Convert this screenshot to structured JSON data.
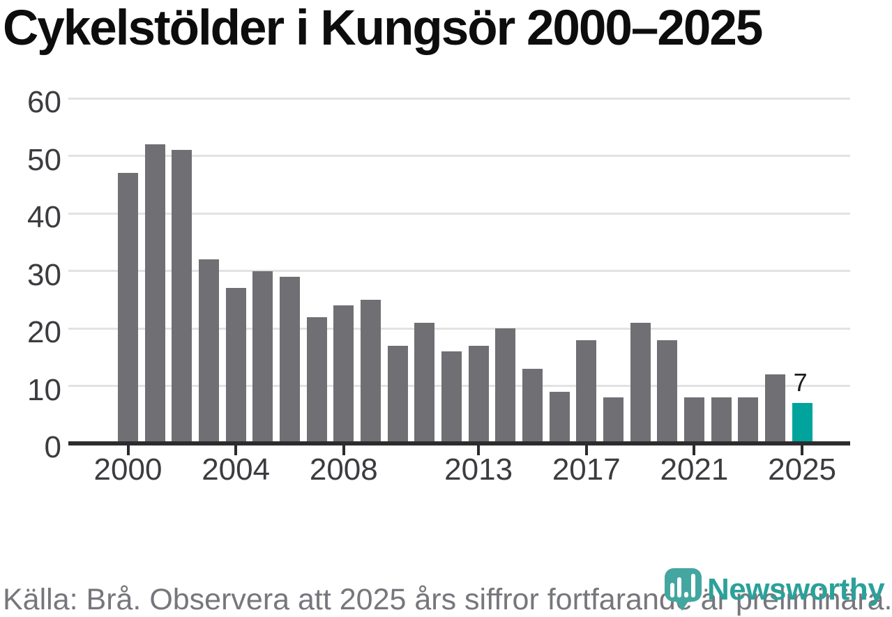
{
  "title": "Cykelstölder i Kungsör 2000–2025",
  "footer": {
    "source_note": "Källa: Brå. Observera att 2025 års siffror fortfarande är preliminära."
  },
  "branding": {
    "logo_text": "Newsworthy",
    "logo_icon": "newsworthy-pin-bar-chart-icon",
    "wordmark_color": "#2ba19a",
    "icon_color": "#43a6a0"
  },
  "colors": {
    "bar_default": "#6f6f74",
    "bar_highlight": "#00a49d",
    "gridline": "#e2e2e4",
    "axis_line": "#2c2c2e",
    "axis_text": "#3c3c40",
    "title_text": "#0d0d0d",
    "footer_text": "#76767c",
    "data_label_text": "#1c1c1c"
  },
  "chart_data": {
    "type": "bar",
    "title": "Cykelstölder i Kungsör 2000–2025",
    "categories": [
      2000,
      2001,
      2002,
      2003,
      2004,
      2005,
      2006,
      2007,
      2008,
      2009,
      2010,
      2011,
      2012,
      2013,
      2014,
      2015,
      2016,
      2017,
      2018,
      2019,
      2020,
      2021,
      2022,
      2023,
      2024,
      2025
    ],
    "values": [
      47,
      52,
      51,
      32,
      27,
      30,
      29,
      22,
      24,
      25,
      17,
      21,
      16,
      17,
      20,
      13,
      9,
      18,
      8,
      21,
      18,
      8,
      8,
      8,
      12,
      7
    ],
    "highlighted_category": 2025,
    "data_label": {
      "category": 2025,
      "text": "7"
    },
    "xlabel": "",
    "ylabel": "",
    "ylim": [
      0,
      60
    ],
    "y_ticks": [
      0,
      10,
      20,
      30,
      40,
      50,
      60
    ],
    "x_ticks": [
      2000,
      2004,
      2008,
      2013,
      2017,
      2021,
      2025
    ],
    "grid": "horizontal",
    "legend": "none"
  }
}
